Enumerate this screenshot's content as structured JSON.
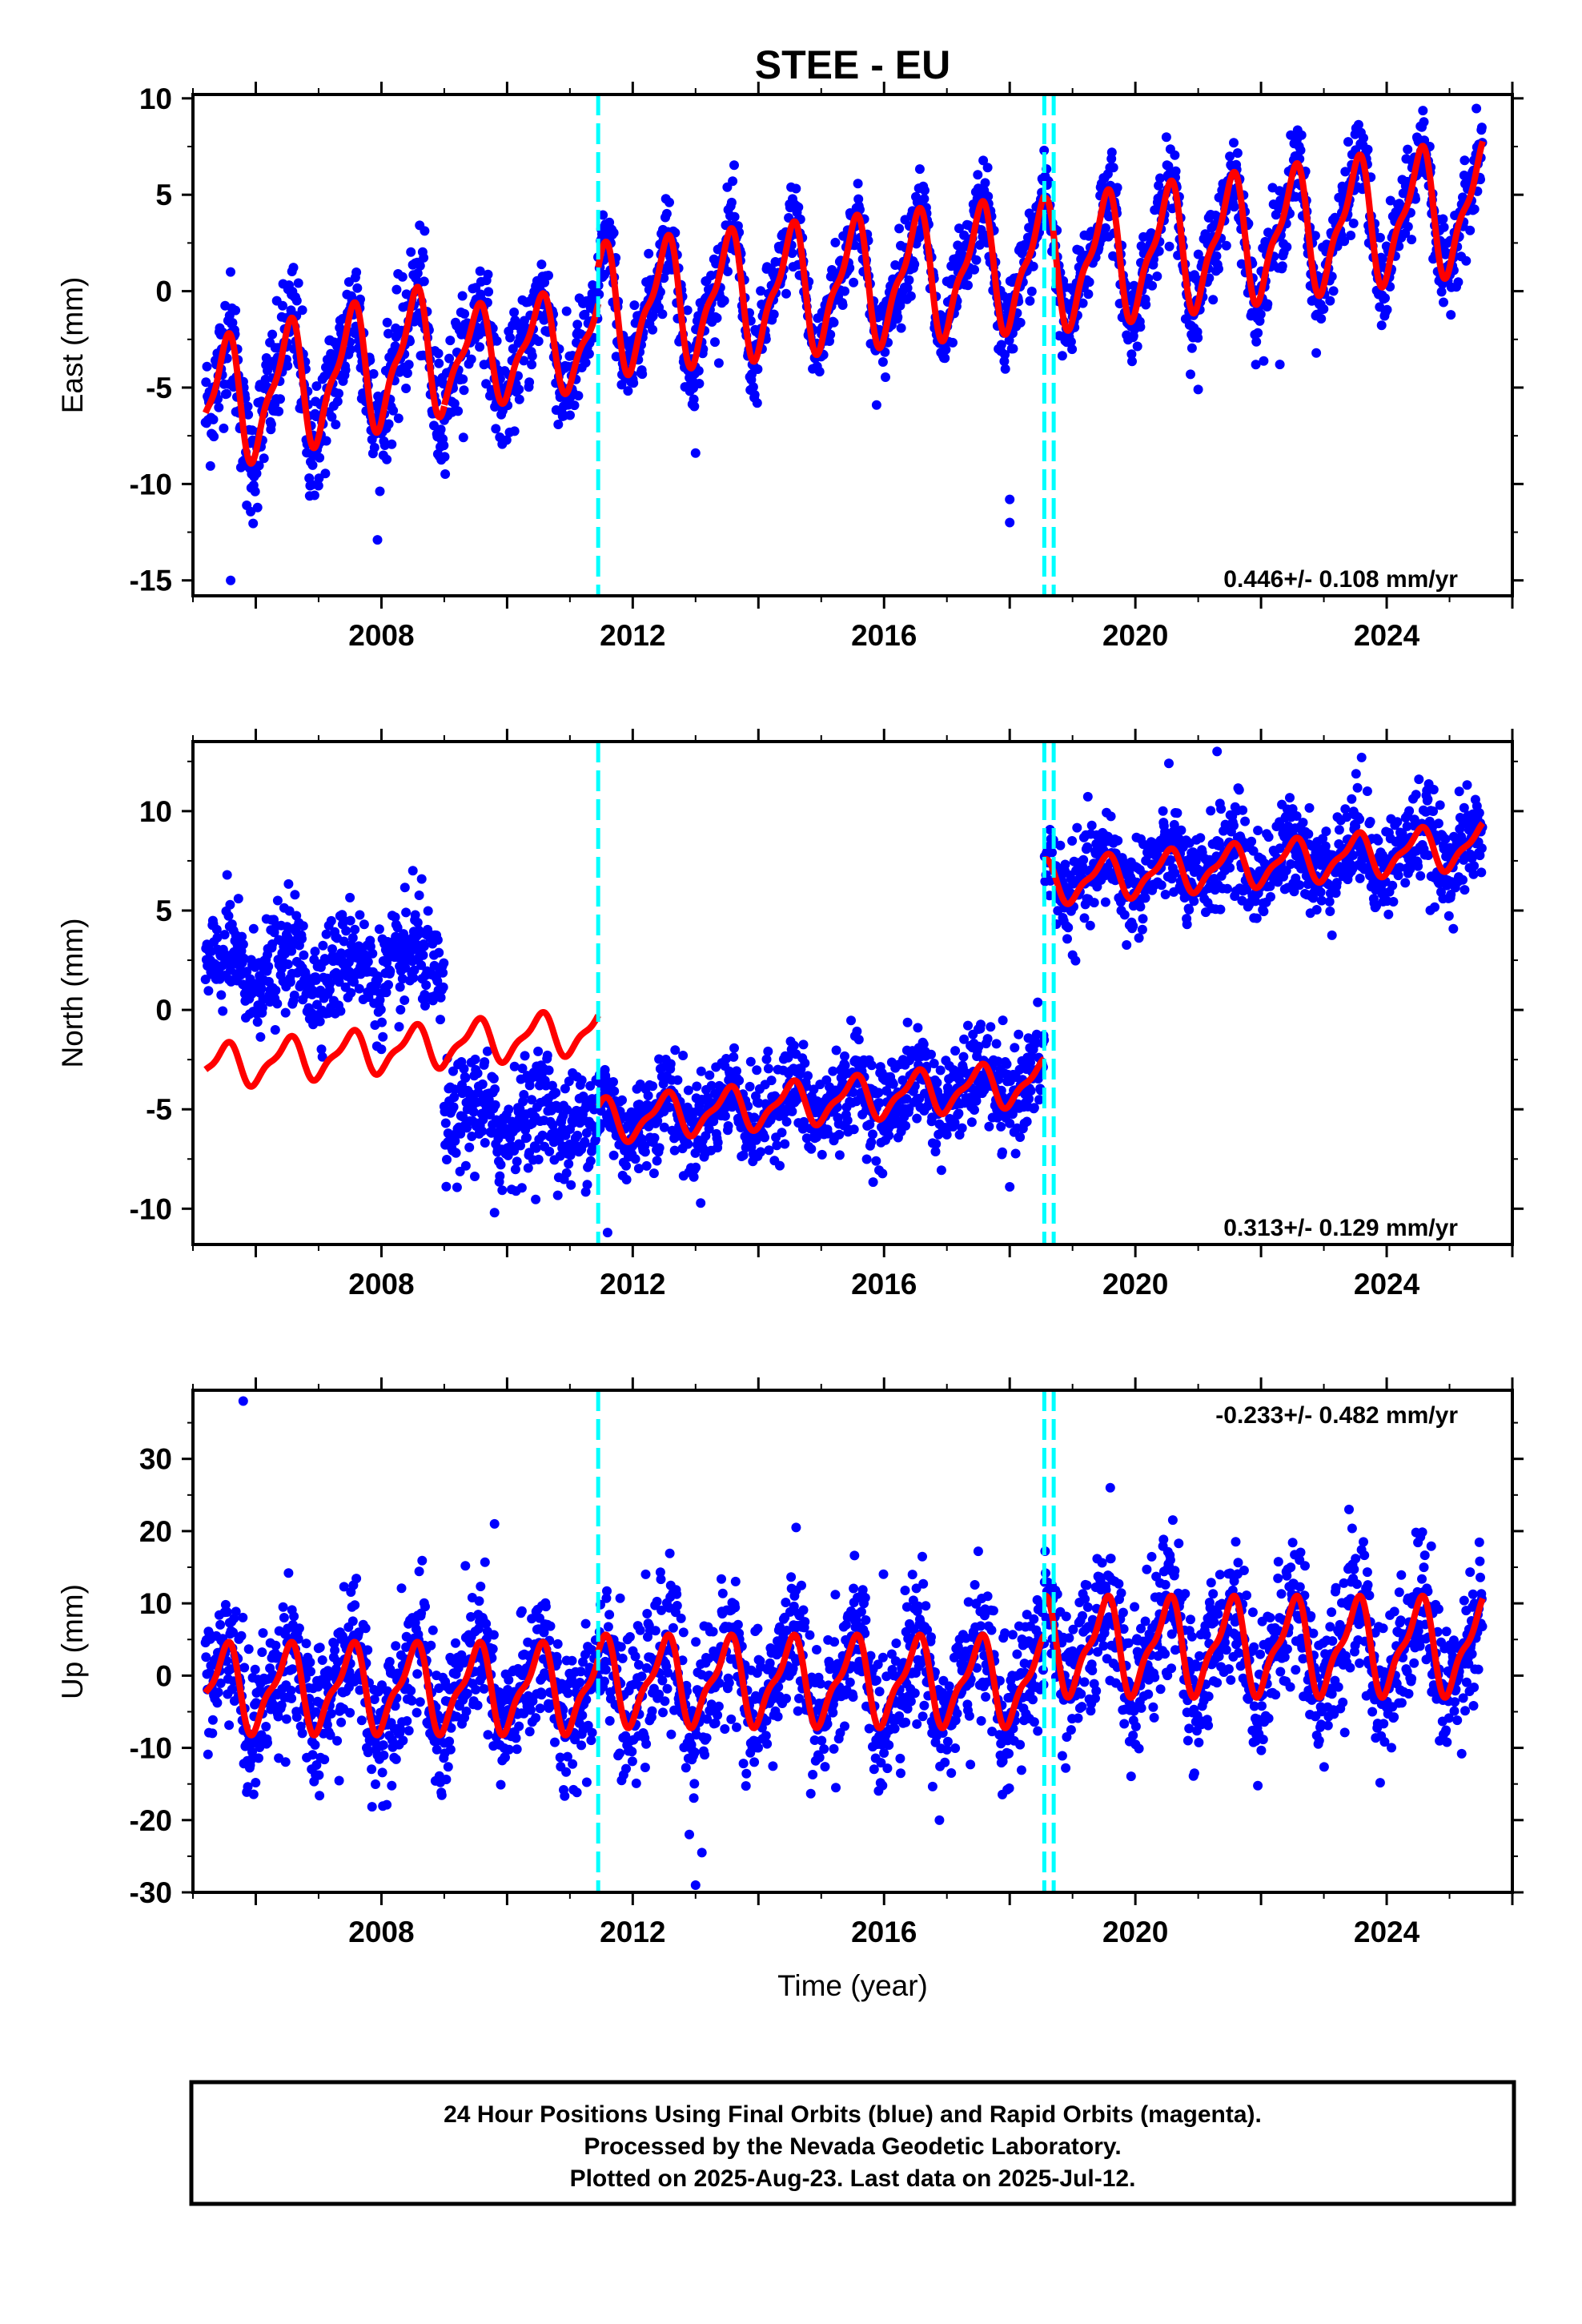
{
  "chart_data": [
    {
      "type": "scatter",
      "id": "east",
      "title": "STEE - EU",
      "ylabel": "East (mm)",
      "xlabel": "",
      "xlim": [
        2005.0,
        2026.0
      ],
      "ylim": [
        -15.8,
        10.2
      ],
      "yticks": [
        10,
        5,
        0,
        -5,
        -10,
        -15
      ],
      "xticks": [
        2008,
        2012,
        2016,
        2020,
        2024
      ],
      "rate_label": "0.446+/- 0.108 mm/yr",
      "rate_position": "bottom-right",
      "offsets": [
        2011.45,
        2018.55,
        2018.7
      ],
      "data_range": [
        2005.2,
        2025.53
      ],
      "series": [
        {
          "name": "Final Orbits (blue)",
          "color": "#0000ff",
          "render": "dense scatter around fitted model",
          "segments": [
            {
              "from": 2005.2,
              "to": 2009.0,
              "offset": -6.0,
              "slope": 0.8,
              "amp": 3.0,
              "scatter": 1.6
            },
            {
              "from": 2009.0,
              "to": 2011.45,
              "offset": -3.6,
              "slope": 0.5,
              "amp": 2.3,
              "scatter": 1.3
            },
            {
              "from": 2011.45,
              "to": 2018.55,
              "offset": -1.0,
              "slope": 0.35,
              "amp": 3.0,
              "scatter": 1.1
            },
            {
              "from": 2018.55,
              "to": 2025.53,
              "offset": 1.3,
              "slope": 0.45,
              "amp": 3.0,
              "scatter": 1.1
            }
          ]
        },
        {
          "name": "Model fit",
          "color": "#ff0000",
          "segments": [
            {
              "from": 2005.2,
              "to": 2009.0,
              "offset": -6.0,
              "slope": 0.8,
              "amp": 3.0
            },
            {
              "from": 2009.0,
              "to": 2011.45,
              "offset": -3.6,
              "slope": 0.5,
              "amp": 2.3
            },
            {
              "from": 2011.45,
              "to": 2018.55,
              "offset": -1.0,
              "slope": 0.35,
              "amp": 3.0
            },
            {
              "from": 2018.55,
              "to": 2025.53,
              "offset": 1.3,
              "slope": 0.45,
              "amp": 3.0
            }
          ]
        }
      ],
      "outliers": [
        [
          2018.0,
          -10.8
        ],
        [
          2018.0,
          -12.0
        ],
        [
          2005.6,
          -15.0
        ],
        [
          2021.0,
          -5.1
        ],
        [
          2022.3,
          -3.8
        ],
        [
          2013.0,
          -8.4
        ]
      ]
    },
    {
      "type": "scatter",
      "id": "north",
      "title": "",
      "ylabel": "North (mm)",
      "xlabel": "",
      "xlim": [
        2005.0,
        2026.0
      ],
      "ylim": [
        -11.8,
        13.5
      ],
      "yticks": [
        10,
        5,
        0,
        -5,
        -10
      ],
      "xticks": [
        2008,
        2012,
        2016,
        2020,
        2024
      ],
      "rate_label": "0.313+/- 0.129 mm/yr",
      "rate_position": "bottom-right",
      "offsets": [
        2011.45,
        2018.55,
        2018.7
      ],
      "data_range": [
        2005.2,
        2025.53
      ],
      "series": [
        {
          "name": "Final Orbits (blue)",
          "color": "#0000ff",
          "segments": [
            {
              "from": 2005.2,
              "to": 2009.0,
              "offset": 2.0,
              "slope": 0.05,
              "amp": 0.8,
              "scatter": 1.3
            },
            {
              "from": 2009.0,
              "to": 2011.45,
              "offset": -5.5,
              "slope": 0.0,
              "amp": 0.8,
              "scatter": 1.4
            },
            {
              "from": 2011.45,
              "to": 2018.55,
              "offset": -5.6,
              "slope": 0.28,
              "amp": 0.9,
              "scatter": 1.2
            },
            {
              "from": 2018.55,
              "to": 2025.53,
              "offset": 6.6,
              "slope": 0.25,
              "amp": 0.9,
              "scatter": 1.2
            }
          ]
        },
        {
          "name": "Model fit",
          "color": "#ff0000",
          "segments": [
            {
              "from": 2005.2,
              "to": 2011.45,
              "offset": -2.9,
              "slope": 0.3,
              "amp": 1.0
            },
            {
              "from": 2011.45,
              "to": 2018.55,
              "offset": -5.6,
              "slope": 0.28,
              "amp": 1.0
            },
            {
              "from": 2018.55,
              "to": 2025.53,
              "offset": 6.4,
              "slope": 0.27,
              "amp": 1.0
            }
          ]
        }
      ],
      "outliers": [
        [
          2011.6,
          -11.2
        ],
        [
          2018.0,
          -8.9
        ],
        [
          2021.3,
          13.0
        ],
        [
          2023.6,
          12.7
        ],
        [
          2008.5,
          7.0
        ],
        [
          2009.8,
          -10.2
        ]
      ]
    },
    {
      "type": "scatter",
      "id": "up",
      "title": "",
      "ylabel": "Up (mm)",
      "xlabel": "Time (year)",
      "xlim": [
        2005.0,
        2026.0
      ],
      "ylim": [
        -30.0,
        39.5
      ],
      "yticks": [
        30,
        20,
        10,
        0,
        -10,
        -20,
        -30
      ],
      "xticks": [
        2008,
        2012,
        2016,
        2020,
        2024
      ],
      "rate_label": "-0.233+/- 0.482 mm/yr",
      "rate_position": "top-right",
      "offsets": [
        2011.45,
        2018.55,
        2018.7
      ],
      "data_range": [
        2005.2,
        2025.53
      ],
      "series": [
        {
          "name": "Final Orbits (blue)",
          "color": "#0000ff",
          "segments": [
            {
              "from": 2005.2,
              "to": 2011.45,
              "offset": -1.8,
              "slope": 0.0,
              "amp": 5.5,
              "scatter": 4.8
            },
            {
              "from": 2011.45,
              "to": 2018.55,
              "offset": -0.8,
              "slope": 0.0,
              "amp": 5.5,
              "scatter": 4.8
            },
            {
              "from": 2018.55,
              "to": 2025.53,
              "offset": 4.0,
              "slope": 0.0,
              "amp": 6.0,
              "scatter": 4.8
            }
          ]
        },
        {
          "name": "Model fit",
          "color": "#ff0000",
          "segments": [
            {
              "from": 2005.2,
              "to": 2011.45,
              "offset": -1.8,
              "slope": 0.0,
              "amp": 5.5
            },
            {
              "from": 2011.45,
              "to": 2018.55,
              "offset": -0.8,
              "slope": 0.0,
              "amp": 5.5
            },
            {
              "from": 2018.55,
              "to": 2025.53,
              "offset": 4.0,
              "slope": 0.0,
              "amp": 6.0
            }
          ]
        }
      ],
      "outliers": [
        [
          2005.8,
          38.0
        ],
        [
          2013.0,
          -29.0
        ],
        [
          2012.9,
          -22.0
        ],
        [
          2013.1,
          -24.5
        ],
        [
          2009.8,
          21.0
        ],
        [
          2019.6,
          26.0
        ],
        [
          2023.4,
          23.0
        ],
        [
          2014.6,
          20.5
        ]
      ]
    }
  ],
  "colors": {
    "data": "#0000ff",
    "model": "#ff0000",
    "offset_line": "#00ffff",
    "axes": "#000000"
  },
  "footer": {
    "line1": "24 Hour Positions Using Final Orbits (blue) and Rapid Orbits (magenta).",
    "line2": "Processed by the Nevada Geodetic Laboratory.",
    "line3": "Plotted on 2025-Aug-23. Last data on 2025-Jul-12."
  }
}
